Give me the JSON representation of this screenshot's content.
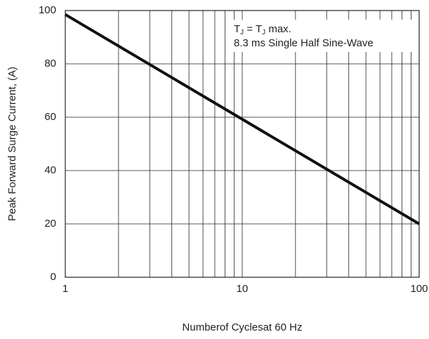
{
  "chart_data": {
    "type": "line",
    "annotation": {
      "line1": [
        "T",
        "J",
        " = T",
        "J",
        " max."
      ],
      "line2": "8.3 ms Single Half Sine-Wave"
    },
    "x_label": "Numberof Cyclesat 60 Hz",
    "y_label": "Peak Forward Surge Current, (A)",
    "x": [
      1,
      100
    ],
    "series": [
      {
        "color": "#111111",
        "values": [
          98.5,
          20
        ]
      }
    ],
    "xlog": true,
    "xlim": [
      1,
      100
    ],
    "xticks": [
      1,
      10,
      100
    ],
    "xminor": [
      2,
      3,
      4,
      5,
      6,
      7,
      8,
      9,
      20,
      30,
      40,
      50,
      60,
      70,
      80,
      90
    ],
    "ylim": [
      0,
      100
    ],
    "yticks": [
      0,
      20,
      40,
      60,
      80,
      100
    ],
    "grid": true
  }
}
